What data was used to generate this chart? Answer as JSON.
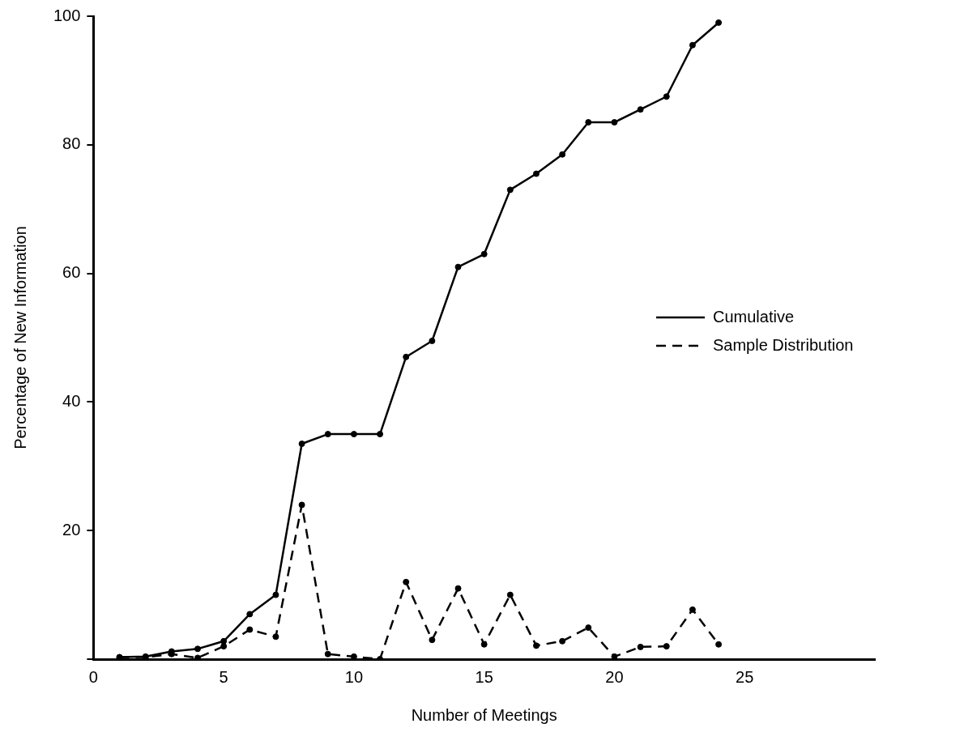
{
  "chart_data": {
    "type": "line",
    "xlabel": "Number of Meetings",
    "ylabel": "Percentage of New Information",
    "x": [
      1,
      2,
      3,
      4,
      5,
      6,
      7,
      8,
      9,
      10,
      11,
      12,
      13,
      14,
      15,
      16,
      17,
      18,
      19,
      20,
      21,
      22,
      23,
      24
    ],
    "series": [
      {
        "name": "Cumulative",
        "color": "#000000",
        "line_style": "solid",
        "values": [
          0.3,
          0.4,
          1.2,
          1.6,
          2.8,
          7,
          10,
          33.5,
          35,
          35,
          35,
          47,
          49.5,
          61,
          63,
          73,
          75.5,
          78.5,
          83.5,
          83.5,
          85.5,
          87.5,
          95.5,
          99
        ]
      },
      {
        "name": "Sample Distribution",
        "color": "#000000",
        "line_style": "dashed",
        "values": [
          0.3,
          0.3,
          0.8,
          0.2,
          2,
          4.6,
          3.5,
          24,
          0.8,
          0.4,
          0,
          12,
          3,
          11,
          2.3,
          10,
          2.1,
          2.8,
          4.9,
          0.4,
          1.9,
          2,
          7.7,
          2.3
        ]
      }
    ],
    "xlim": [
      0,
      30
    ],
    "xticks": [
      0,
      5,
      10,
      15,
      20,
      25
    ],
    "ylim": [
      0,
      100
    ],
    "yticks": [
      {
        "value": 0,
        "label": null
      },
      20,
      40,
      60,
      80,
      100
    ],
    "grid": false,
    "legend": "right",
    "marker": "circle"
  }
}
